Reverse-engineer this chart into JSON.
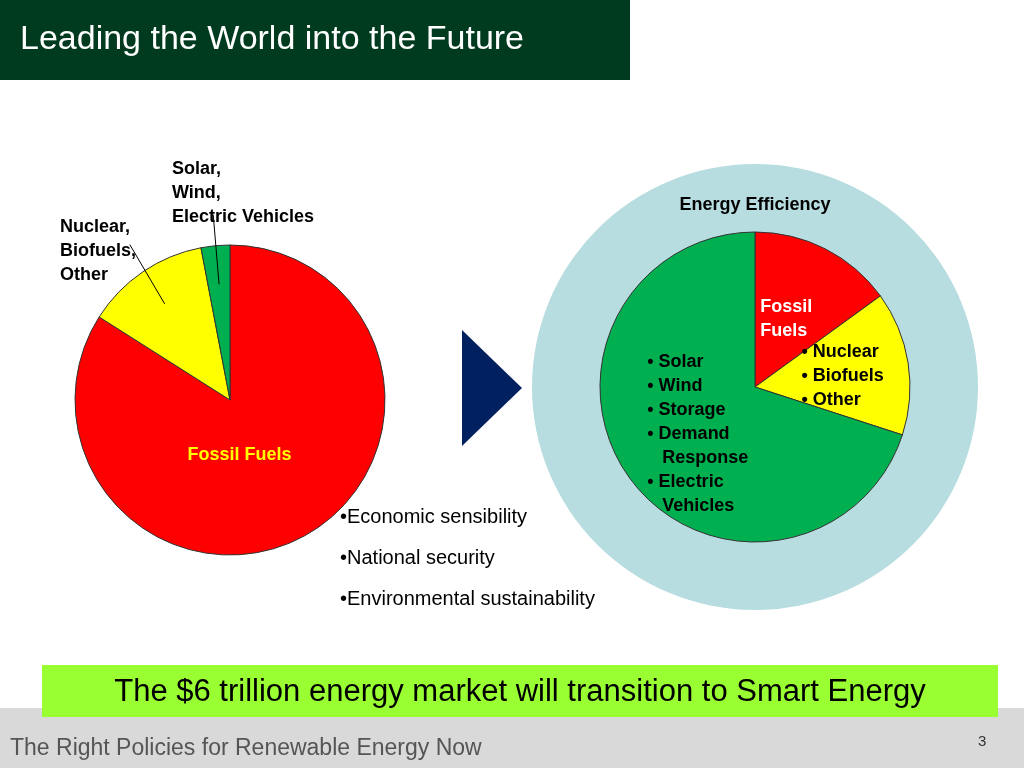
{
  "chart_data": [
    {
      "type": "pie",
      "title": "Leading the World into the Future",
      "categories": [
        "Fossil Fuels",
        "Nuclear,\nBiofuels,\nOther",
        "Solar,\nWind,\nElectric Vehicles"
      ],
      "values": [
        84,
        13,
        3
      ],
      "colors": [
        "#ff0000",
        "#ffff00",
        "#00b050"
      ],
      "annotations": [
        "•Economic sensibility",
        "•National security",
        "•Environmental sustainability",
        "The $6 trillion energy market will transition to Smart Energy",
        "The Right Policies for Renewable Energy Now",
        "3"
      ]
    },
    {
      "type": "pie",
      "title": "Energy Efficiency",
      "categories": [
        "Fossil\nFuels",
        "• Nuclear\n• Biofuels\n• Other",
        "• Solar\n• Wind\n• Storage\n• Demand\n   Response\n• Electric\n   Vehicles"
      ],
      "values": [
        15,
        15,
        70
      ],
      "colors": [
        "#ff0000",
        "#ffff00",
        "#00b050"
      ]
    }
  ]
}
